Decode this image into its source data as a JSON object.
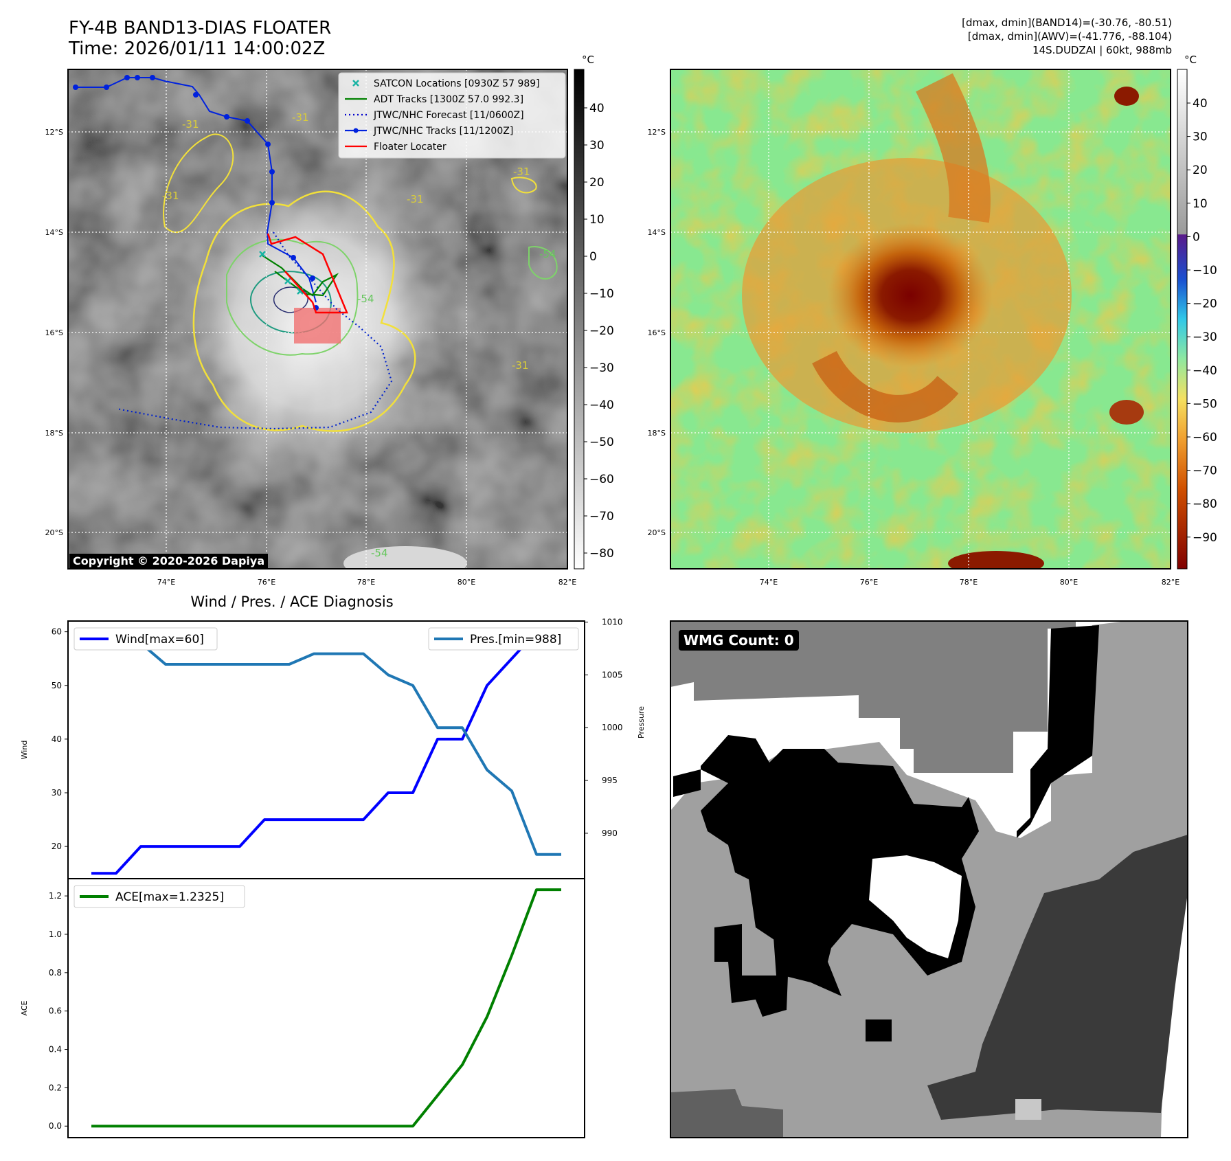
{
  "header": {
    "title_line1": "FY-4B BAND13-DIAS FLOATER",
    "title_line2": "Time: 2026/01/11 14:00:02Z",
    "right_line1": "[dmax, dmin](BAND14)=(-30.76, -80.51)",
    "right_line2": "[dmax, dmin](AWV)=(-41.776, -88.104)",
    "right_line3": "14S.DUDZAI | 60kt, 988mb"
  },
  "map_axes": {
    "lat_labels": [
      "12°S",
      "14°S",
      "16°S",
      "18°S",
      "20°S"
    ],
    "lon_labels": [
      "74°E",
      "76°E",
      "78°E",
      "80°E",
      "82°E"
    ]
  },
  "ir_panel": {
    "copyright": "Copyright © 2020-2026 Dapiya",
    "contour_labels": [
      "-31",
      "-54"
    ],
    "legend": [
      {
        "label": "SATCON Locations [0930Z 57 989]",
        "color": "#17b3a3",
        "style": "x"
      },
      {
        "label": "ADT Tracks [1300Z 57.0 992.3]",
        "color": "#008000",
        "style": "line"
      },
      {
        "label": "JTWC/NHC Forecast [11/0600Z]",
        "color": "#0000cc",
        "style": "dotted"
      },
      {
        "label": "JTWC/NHC Tracks [11/1200Z]",
        "color": "#0022dd",
        "style": "line-dot"
      },
      {
        "label": "Floater Locater",
        "color": "#ff0000",
        "style": "line"
      }
    ],
    "colorbar": {
      "unit": "°C",
      "ticks": [
        "40",
        "30",
        "20",
        "10",
        "0",
        "−10",
        "−20",
        "−30",
        "−40",
        "−50",
        "−60",
        "−70",
        "−80"
      ]
    }
  },
  "wv_panel": {
    "colorbar": {
      "unit": "°C",
      "ticks": [
        "40",
        "30",
        "20",
        "10",
        "0",
        "−10",
        "−20",
        "−30",
        "−40",
        "−50",
        "−60",
        "−70",
        "−80",
        "−90"
      ]
    }
  },
  "wmg_panel": {
    "badge": "WMG Count: 0"
  },
  "chart_data": [
    {
      "type": "line",
      "title": "Wind / Pres. / ACE Diagnosis",
      "ylabel": "Wind",
      "y2label": "Pressure",
      "ylim": [
        14,
        62
      ],
      "y2lim": [
        985.7,
        1010.1
      ],
      "yticks": [
        "20",
        "30",
        "40",
        "50",
        "60"
      ],
      "y2ticks": [
        "990",
        "995",
        "1000",
        "1005",
        "1010"
      ],
      "x": [
        0,
        1,
        2,
        3,
        4,
        5,
        6,
        7,
        8,
        9,
        10,
        11,
        12,
        13,
        14,
        15,
        16,
        17,
        18,
        19
      ],
      "series": [
        {
          "name": "Wind",
          "legend": "Wind[max=60]",
          "color": "#0000ff",
          "axis": "left",
          "values": [
            15,
            15,
            20,
            20,
            20,
            20,
            20,
            25,
            25,
            25,
            25,
            25,
            30,
            30,
            40,
            40,
            50,
            55,
            60,
            60
          ]
        },
        {
          "name": "Pres.",
          "legend": "Pres.[min=988]",
          "color": "#1f77b4",
          "axis": "right",
          "values": [
            1009,
            1009,
            1008,
            1006,
            1006,
            1006,
            1006,
            1006,
            1006,
            1007,
            1007,
            1007,
            1005,
            1004,
            1000,
            1000,
            996,
            994,
            988,
            988
          ]
        }
      ]
    },
    {
      "type": "line",
      "ylabel": "ACE",
      "ylim": [
        -0.06,
        1.29
      ],
      "yticks": [
        "0.0",
        "0.2",
        "0.4",
        "0.6",
        "0.8",
        "1.0",
        "1.2"
      ],
      "x": [
        0,
        1,
        2,
        3,
        4,
        5,
        6,
        7,
        8,
        9,
        10,
        11,
        12,
        13,
        14,
        15,
        16,
        17,
        18,
        19
      ],
      "series": [
        {
          "name": "ACE",
          "legend": "ACE[max=1.2325]",
          "color": "#008000",
          "values": [
            0,
            0,
            0,
            0,
            0,
            0,
            0,
            0,
            0,
            0,
            0,
            0,
            0,
            0,
            0.16,
            0.32,
            0.57,
            0.89,
            1.2325,
            1.2325
          ]
        }
      ]
    }
  ]
}
